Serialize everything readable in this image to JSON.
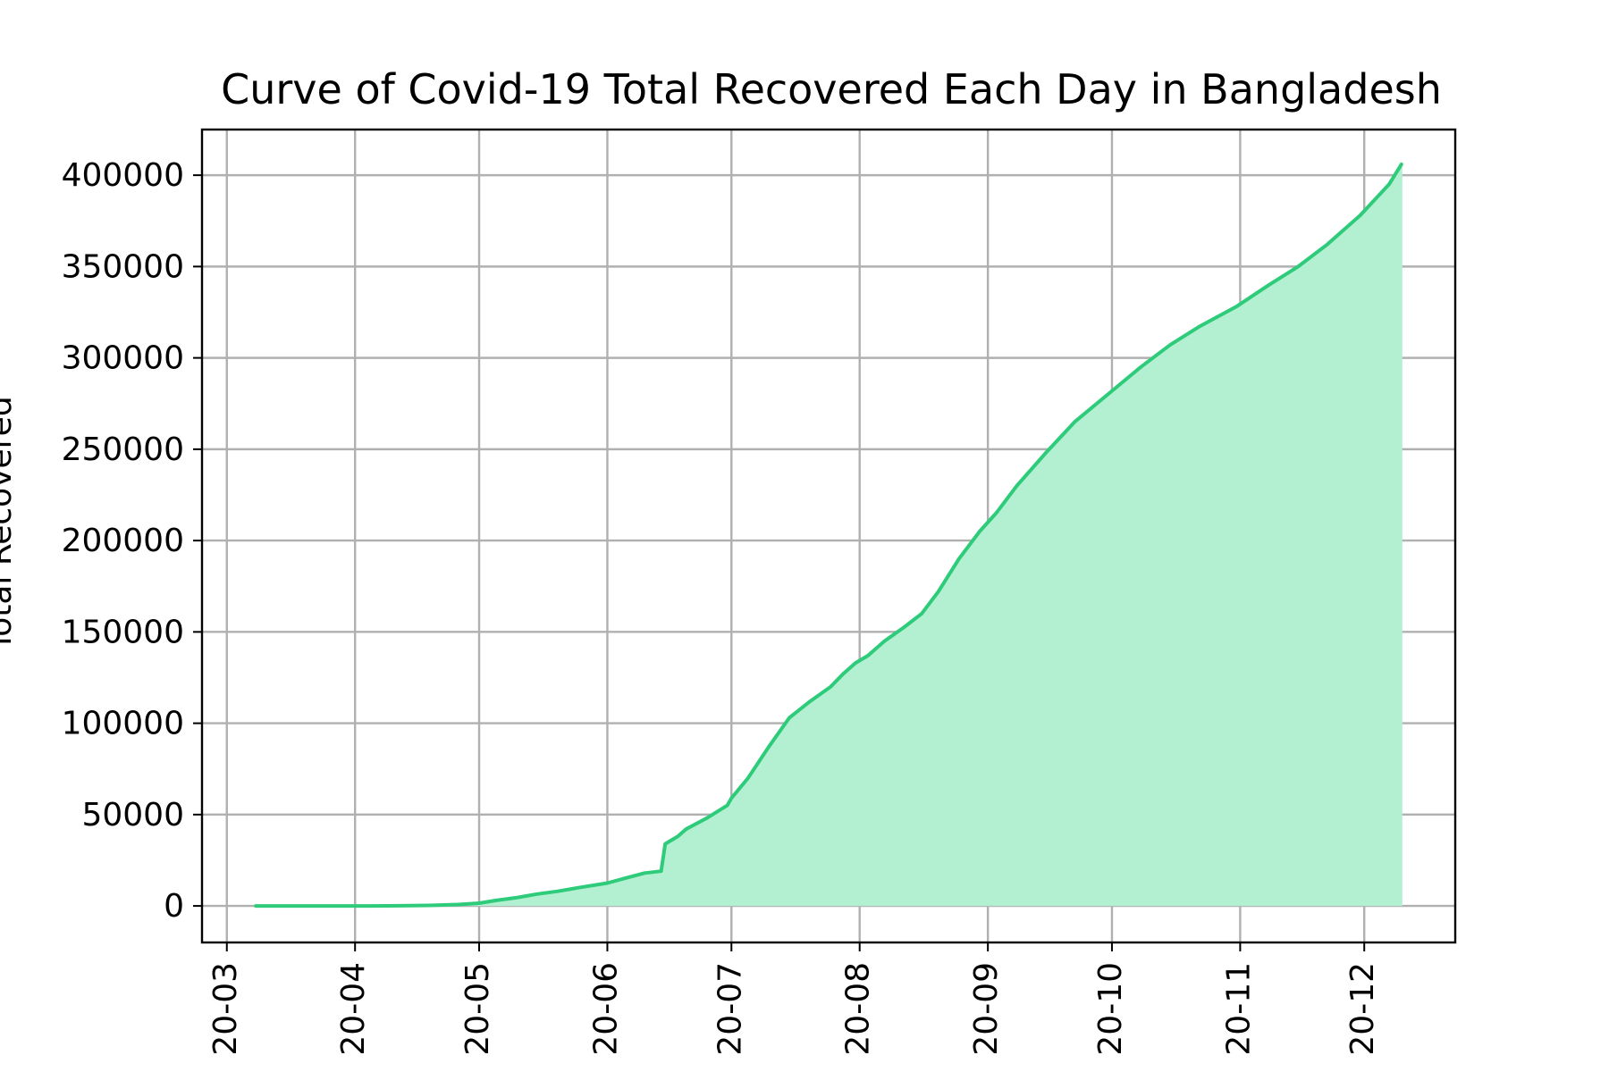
{
  "chart_data": {
    "type": "area",
    "title": "Curve of Covid-19 Total Recovered Each Day in Bangladesh",
    "xlabel": "",
    "ylabel": "Total Recovered",
    "x_tick_labels": [
      "20-03",
      "20-04",
      "20-05",
      "20-06",
      "20-07",
      "20-08",
      "20-09",
      "20-10",
      "20-11",
      "20-12"
    ],
    "x_tick_dates": [
      "2020-03-01",
      "2020-04-01",
      "2020-05-01",
      "2020-06-01",
      "2020-07-01",
      "2020-08-01",
      "2020-09-01",
      "2020-10-01",
      "2020-11-01",
      "2020-12-01"
    ],
    "y_ticks": [
      0,
      50000,
      100000,
      150000,
      200000,
      250000,
      300000,
      350000,
      400000
    ],
    "xlim": [
      "2020-02-24",
      "2020-12-23"
    ],
    "ylim": [
      -20000,
      425000
    ],
    "grid": true,
    "line_color": "#2ecc7a",
    "fill_color": "#b2f0d1",
    "series": [
      {
        "x": [
          "2020-03-08",
          "2020-03-15",
          "2020-03-22",
          "2020-03-29",
          "2020-04-05",
          "2020-04-12",
          "2020-04-19",
          "2020-04-26",
          "2020-05-01",
          "2020-05-05",
          "2020-05-10",
          "2020-05-15",
          "2020-05-20",
          "2020-05-25",
          "2020-06-01",
          "2020-06-05",
          "2020-06-10",
          "2020-06-14",
          "2020-06-15",
          "2020-06-18",
          "2020-06-20",
          "2020-06-25",
          "2020-06-30",
          "2020-07-01",
          "2020-07-05",
          "2020-07-10",
          "2020-07-15",
          "2020-07-20",
          "2020-07-25",
          "2020-07-28",
          "2020-07-31",
          "2020-08-03",
          "2020-08-07",
          "2020-08-12",
          "2020-08-16",
          "2020-08-20",
          "2020-08-25",
          "2020-08-30",
          "2020-09-03",
          "2020-09-08",
          "2020-09-15",
          "2020-09-22",
          "2020-09-30",
          "2020-10-08",
          "2020-10-15",
          "2020-10-22",
          "2020-10-31",
          "2020-11-08",
          "2020-11-15",
          "2020-11-22",
          "2020-11-30",
          "2020-12-07",
          "2020-12-10"
        ],
        "y": [
          0,
          0,
          0,
          0,
          0,
          100,
          300,
          800,
          1500,
          3000,
          4500,
          6500,
          8000,
          10000,
          12500,
          15000,
          18000,
          19000,
          34000,
          38000,
          42000,
          48000,
          55000,
          59000,
          70000,
          87000,
          103000,
          112000,
          120000,
          127000,
          133000,
          137000,
          145000,
          153000,
          160000,
          172000,
          190000,
          205000,
          215000,
          230000,
          248000,
          265000,
          280000,
          295000,
          307000,
          317000,
          328000,
          340000,
          350000,
          362000,
          378000,
          395000,
          406000
        ]
      }
    ]
  }
}
